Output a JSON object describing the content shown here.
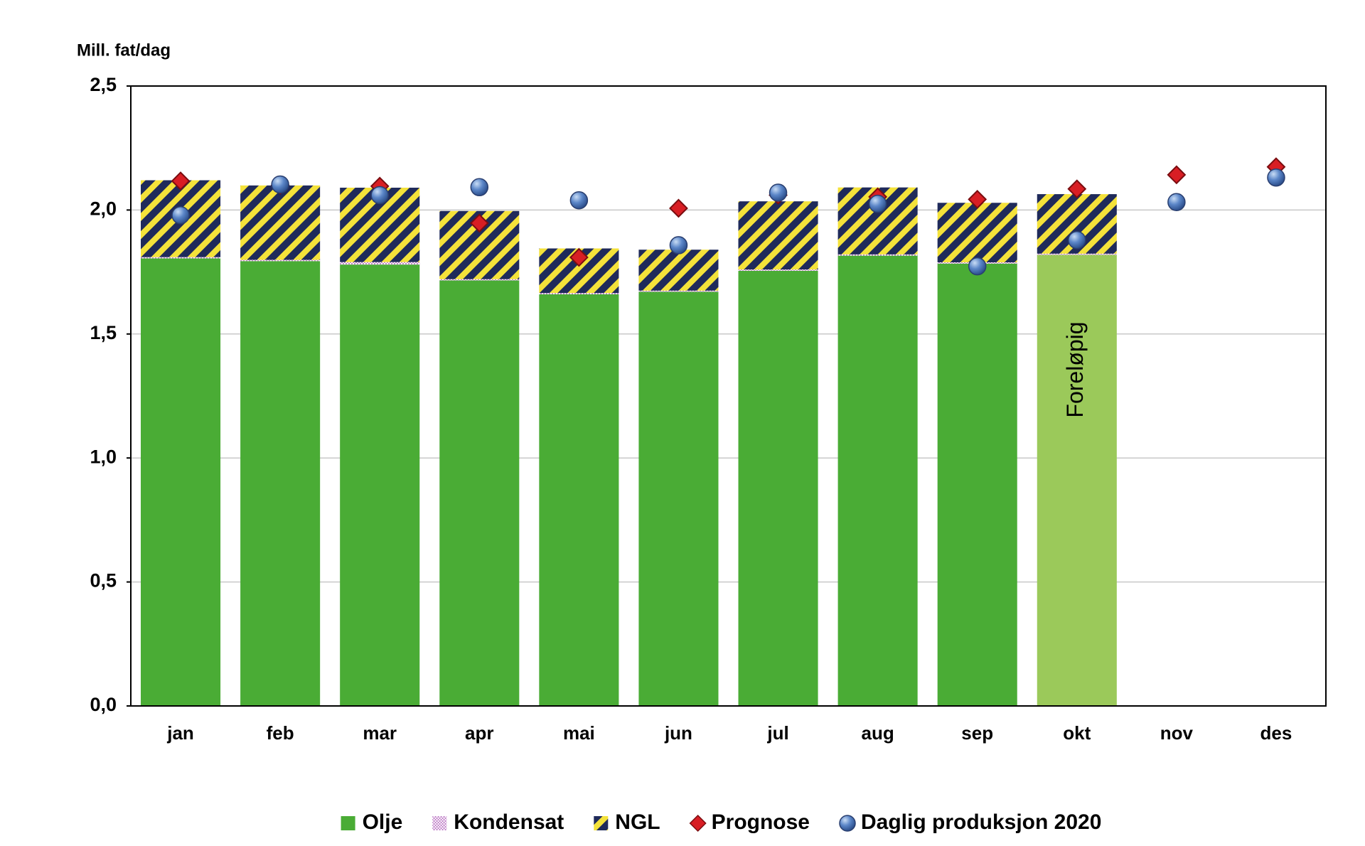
{
  "chart_data": {
    "type": "bar",
    "stacked": true,
    "y_label": "Mill. fat/dag",
    "categories": [
      "jan",
      "feb",
      "mar",
      "apr",
      "mai",
      "jun",
      "jul",
      "aug",
      "sep",
      "okt",
      "nov",
      "des"
    ],
    "series": [
      {
        "name": "Olje",
        "color": "#4aac35",
        "bar_colors": [
          null,
          null,
          null,
          null,
          null,
          null,
          null,
          null,
          null,
          "#9bc95a",
          null,
          null
        ],
        "values": [
          1.805,
          1.794,
          1.78,
          1.716,
          1.66,
          1.67,
          1.755,
          1.816,
          1.784,
          1.819,
          null,
          null
        ]
      },
      {
        "name": "Kondensat",
        "color": "#c080c8",
        "pattern": "check",
        "values": [
          0.005,
          0.005,
          0.01,
          0.005,
          0.005,
          0.005,
          0.005,
          0.005,
          0.005,
          0.005,
          null,
          null
        ]
      },
      {
        "name": "NGL",
        "color": "#1f2a5a",
        "pattern": "stripes",
        "values": [
          0.31,
          0.3,
          0.3,
          0.275,
          0.18,
          0.165,
          0.275,
          0.27,
          0.24,
          0.24,
          null,
          null
        ]
      },
      {
        "name": "Prognose",
        "type": "scatter",
        "marker": "diamond",
        "color": "#d81e24",
        "values": [
          2.117,
          2.1,
          2.096,
          1.947,
          1.809,
          2.007,
          2.06,
          2.053,
          2.043,
          2.085,
          2.142,
          2.174
        ]
      },
      {
        "name": "Daglig produksjon 2020",
        "type": "scatter",
        "marker": "circle",
        "color": "#5b86c8",
        "values": [
          1.979,
          2.103,
          2.06,
          2.092,
          2.039,
          1.858,
          2.07,
          2.025,
          1.773,
          1.879,
          2.032,
          2.131
        ]
      }
    ],
    "annotations": [
      {
        "text": "Foreløpig",
        "category": "okt"
      }
    ],
    "ylim": [
      0,
      2.5
    ],
    "yticks": [
      {
        "value": 0,
        "label": "0,0"
      },
      {
        "value": 0.5,
        "label": "0,5"
      },
      {
        "value": 1,
        "label": "1,0"
      },
      {
        "value": 1.5,
        "label": "1,5"
      },
      {
        "value": 2,
        "label": "2,0"
      },
      {
        "value": 2.5,
        "label": "2,5"
      }
    ],
    "grid": true,
    "legend": "bottom"
  }
}
